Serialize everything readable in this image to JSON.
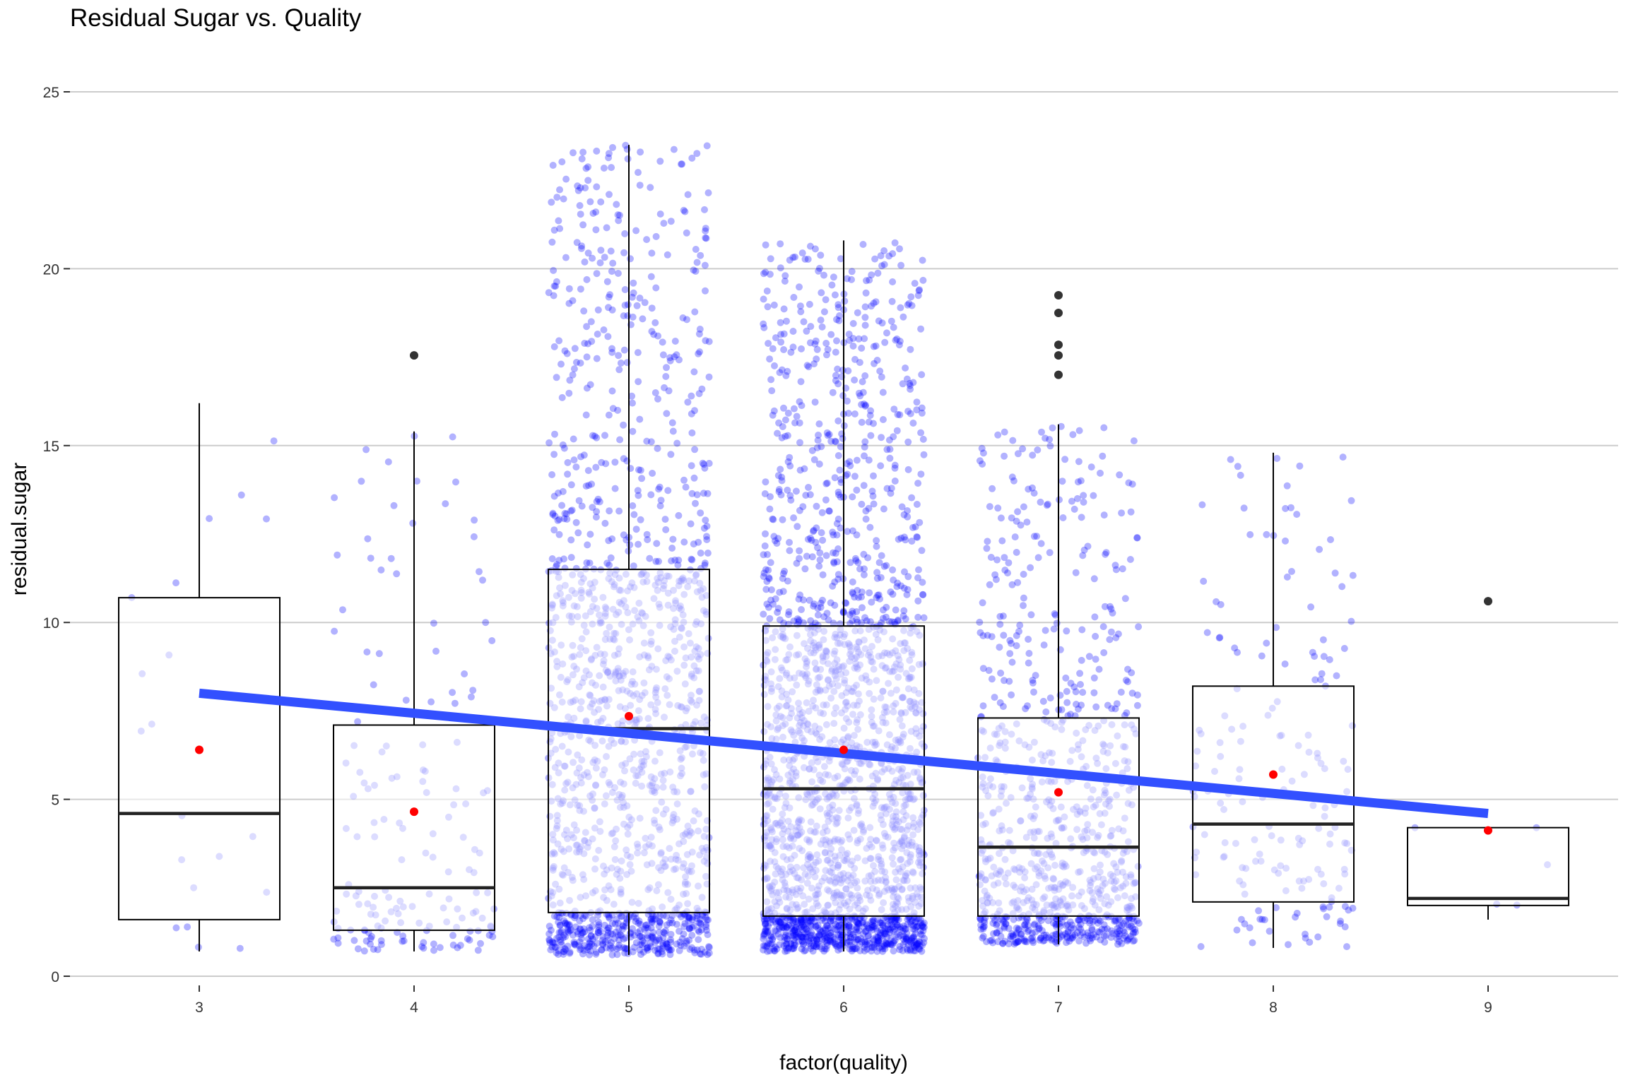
{
  "chart_data": {
    "type": "boxplot",
    "title": "Residual Sugar vs. Quality",
    "xlabel": "factor(quality)",
    "ylabel": "residual.sugar",
    "categories": [
      "3",
      "4",
      "5",
      "6",
      "7",
      "8",
      "9"
    ],
    "ylim": [
      0,
      25
    ],
    "yticks": [
      0,
      5,
      10,
      15,
      20,
      25
    ],
    "grid": true,
    "boxes": [
      {
        "category": "3",
        "whisker_low": 0.7,
        "q1": 1.6,
        "median": 4.6,
        "q3": 10.7,
        "whisker_high": 16.2,
        "mean": 6.4,
        "outliers": []
      },
      {
        "category": "4",
        "whisker_low": 0.7,
        "q1": 1.3,
        "median": 2.5,
        "q3": 7.1,
        "whisker_high": 15.4,
        "mean": 4.65,
        "outliers": [
          17.55
        ]
      },
      {
        "category": "5",
        "whisker_low": 0.6,
        "q1": 1.8,
        "median": 7.0,
        "q3": 11.5,
        "whisker_high": 23.5,
        "mean": 7.35,
        "outliers": []
      },
      {
        "category": "6",
        "whisker_low": 0.7,
        "q1": 1.7,
        "median": 5.3,
        "q3": 9.9,
        "whisker_high": 20.8,
        "mean": 6.4,
        "outliers": []
      },
      {
        "category": "7",
        "whisker_low": 0.9,
        "q1": 1.7,
        "median": 3.65,
        "q3": 7.3,
        "whisker_high": 15.6,
        "mean": 5.2,
        "outliers": [
          17.0,
          17.55,
          17.85,
          18.75,
          19.25
        ]
      },
      {
        "category": "8",
        "whisker_low": 0.8,
        "q1": 2.1,
        "median": 4.3,
        "q3": 8.2,
        "whisker_high": 14.8,
        "mean": 5.7,
        "outliers": []
      },
      {
        "category": "9",
        "whisker_low": 1.6,
        "q1": 2.0,
        "median": 2.2,
        "q3": 4.2,
        "whisker_high": 4.2,
        "mean": 4.12,
        "outliers": [
          10.6
        ]
      }
    ],
    "jitter_counts": [
      20,
      163,
      1457,
      2198,
      880,
      175,
      5
    ],
    "trend_line": {
      "x_start": "3",
      "y_start": 8.0,
      "x_end": "9",
      "y_end": 4.6
    },
    "colors": {
      "points": "#0000ff",
      "trend": "#3250ff",
      "mean": "#ff0000",
      "outlier": "#333333",
      "box": "#000000",
      "median": "#222222",
      "grid": "#cccccc"
    }
  }
}
